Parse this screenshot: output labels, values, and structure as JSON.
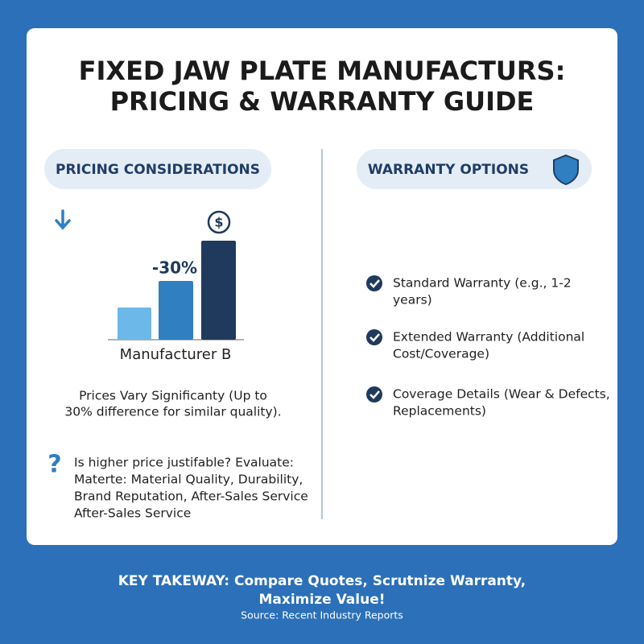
{
  "header": {
    "title_lines": [
      "FIXED JAW PLATE MANUFACTURS:",
      "PRICING & WARRANTY GUIDE"
    ]
  },
  "pricing": {
    "heading": "PRICING CONSIDERATIONS",
    "price_icon": "$",
    "difference_label": "-30%",
    "bar_label": "Manufacturer B",
    "summary_lines": [
      "Prices Vary Significanty (Up to",
      "30% difference for similar quality)."
    ],
    "question_icon": "?",
    "question_lines": [
      "Is higher price justifable? Evaluate:",
      "Materte: Material Quality, Durability,",
      "Brand Reputation, After-Sales Service",
      "After-Sales Service"
    ]
  },
  "warranty": {
    "heading": "WARRANTY OPTIONS",
    "items": [
      [
        "Standard Warranty (e.g., 1-2",
        "years)"
      ],
      [
        "Extended Warranty (Additional",
        "Cost/Coverage)"
      ],
      [
        "Coverage Details (Wear & Defects,",
        "Replacements)"
      ]
    ]
  },
  "footer": {
    "takeaway_lines": [
      "KEY TAKEWAY: Compare Quotes, Scrutnize Warranty,",
      "Maximize Value!"
    ],
    "source": "Source: Recent Industry Reports"
  }
}
